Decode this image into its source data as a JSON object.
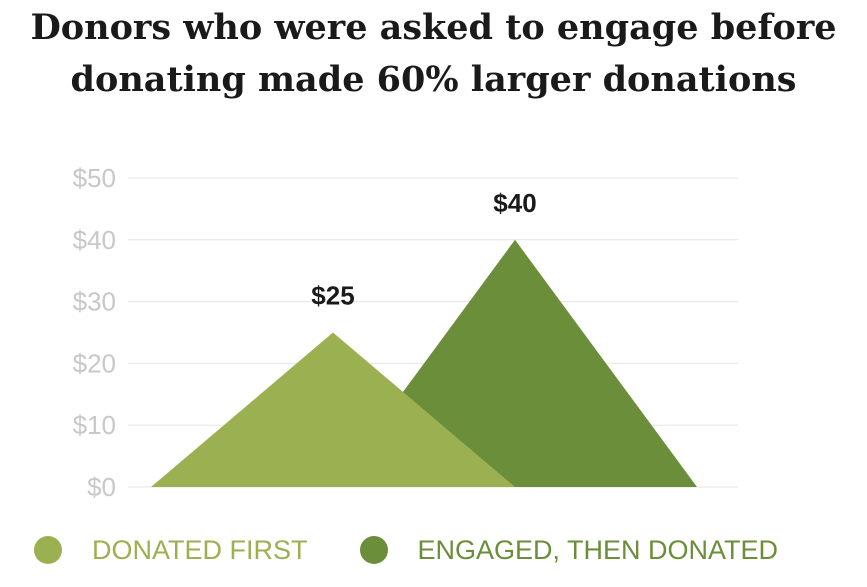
{
  "title_lines": [
    "Donors who were asked to engage before",
    "donating made 60% larger donations"
  ],
  "chart_data": {
    "type": "area",
    "title": "Donors who were asked to engage before donating made 60% larger donations",
    "xlabel": "",
    "ylabel": "",
    "ylim": [
      0,
      50
    ],
    "yticks": [
      0,
      10,
      20,
      30,
      40,
      50
    ],
    "ytick_labels": [
      "$0",
      "$10",
      "$20",
      "$30",
      "$40",
      "$50"
    ],
    "grid": true,
    "legend_position": "bottom",
    "series": [
      {
        "name": "DONATED FIRST",
        "value": 25,
        "data_label": "$25",
        "color": "#9bb050"
      },
      {
        "name": "ENGAGED, THEN DONATED",
        "value": 40,
        "data_label": "$40",
        "color": "#6b8e3a"
      }
    ]
  }
}
